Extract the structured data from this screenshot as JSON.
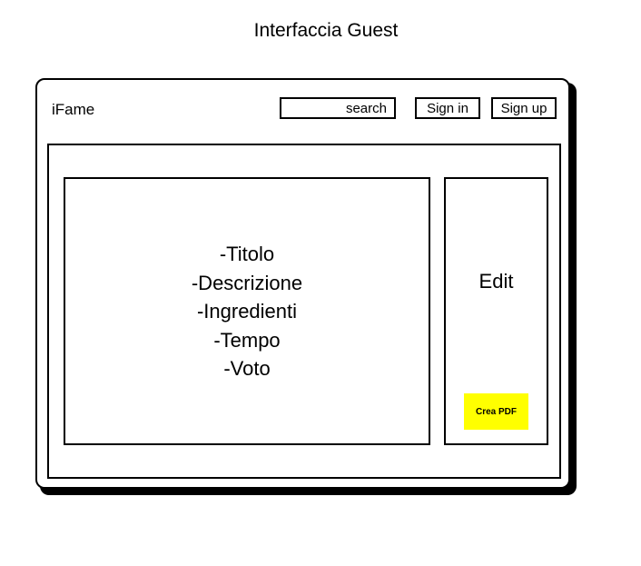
{
  "title": "Interfaccia Guest",
  "header": {
    "brand": "iFame",
    "search_placeholder": "search",
    "sign_in_label": "Sign in",
    "sign_up_label": "Sign up"
  },
  "details": {
    "fields": [
      "-Titolo",
      "-Descrizione",
      "-Ingredienti",
      "-Tempo",
      "-Voto"
    ]
  },
  "side_panel": {
    "edit_label": "Edit",
    "pdf_button_label": "Crea PDF",
    "pdf_button_color": "#ffff00"
  }
}
